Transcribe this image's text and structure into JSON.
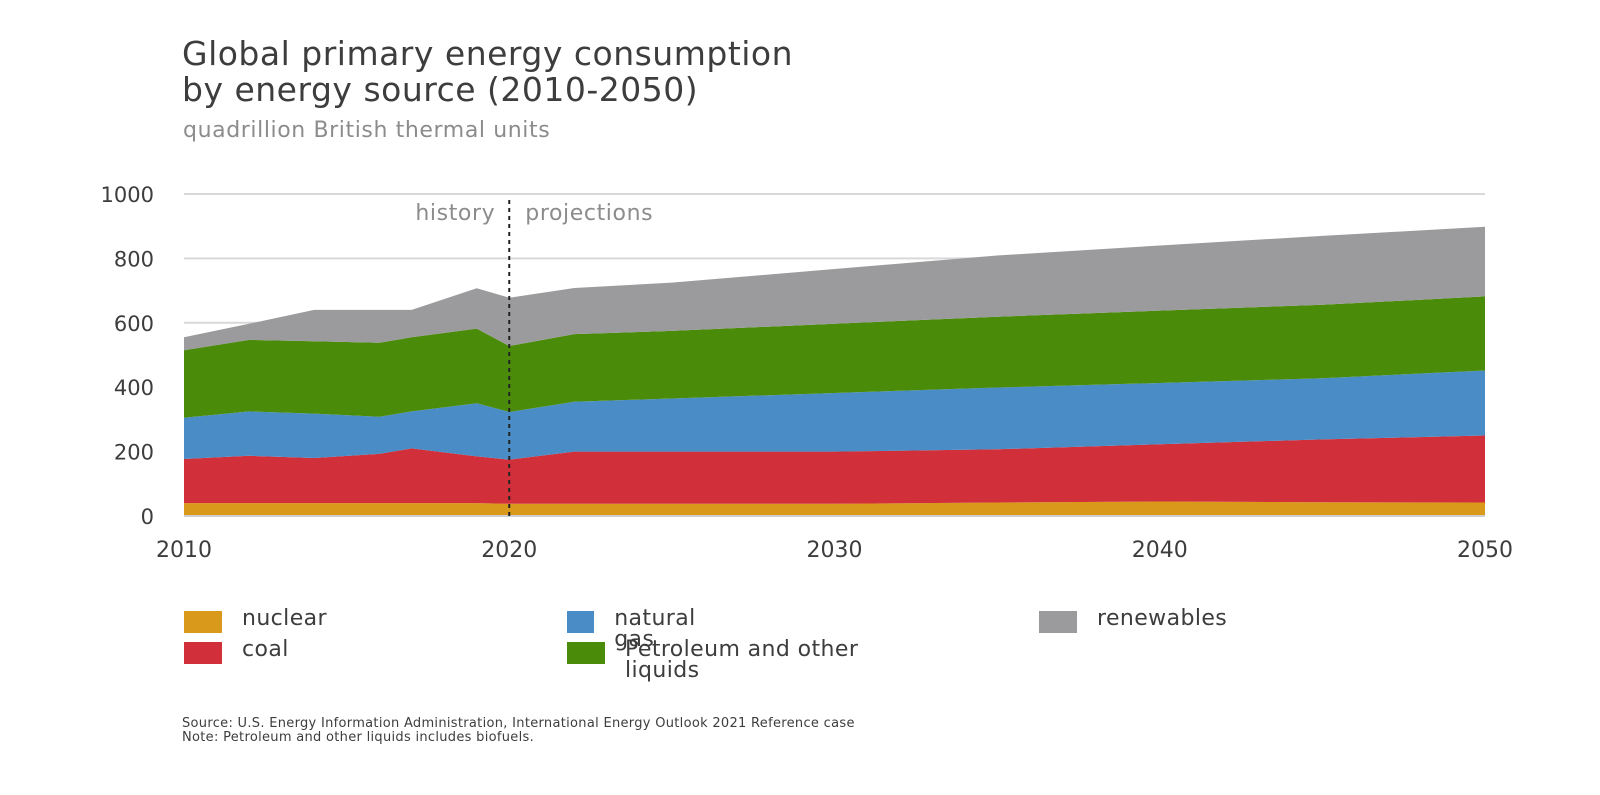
{
  "title_lines": [
    "Global primary energy consumption",
    "by energy source (2010-2050)"
  ],
  "subtitle": "quadrillion British thermal units",
  "source_note": "Source: U.S. Energy Information Administration, International Energy Outlook 2021 Reference case",
  "footnote": "Note: Petroleum and other liquids includes biofuels.",
  "chart_data": {
    "type": "area",
    "stacked": true,
    "x": [
      2010,
      2012,
      2014,
      2016,
      2017,
      2019,
      2020,
      2022,
      2025,
      2030,
      2035,
      2040,
      2045,
      2050
    ],
    "series": [
      {
        "name": "nuclear",
        "color": "#d99a1c",
        "values": [
          40,
          40,
          40,
          40,
          40,
          40,
          38,
          38,
          38,
          38,
          42,
          45,
          43,
          42
        ]
      },
      {
        "name": "coal",
        "color": "#d1303a",
        "values": [
          137,
          147,
          140,
          153,
          170,
          145,
          137,
          162,
          162,
          162,
          165,
          178,
          195,
          208
        ]
      },
      {
        "name": "natural gas",
        "color": "#4a8cc6",
        "values": [
          128,
          138,
          138,
          115,
          115,
          165,
          148,
          155,
          165,
          182,
          192,
          190,
          190,
          202
        ]
      },
      {
        "name": "Petroleum and other liquids",
        "color": "#4a8c0a",
        "values": [
          210,
          222,
          225,
          230,
          230,
          232,
          205,
          210,
          210,
          215,
          220,
          225,
          228,
          230
        ]
      },
      {
        "name": "renewables",
        "color": "#9b9a9d",
        "values": [
          40,
          50,
          97,
          102,
          85,
          125,
          150,
          143,
          150,
          170,
          190,
          202,
          214,
          216
        ]
      }
    ],
    "ylim": [
      0,
      1000
    ],
    "yticks": [
      0,
      200,
      400,
      600,
      800,
      1000
    ],
    "xlim": [
      2010,
      2050
    ],
    "xticks": [
      2010,
      2020,
      2030,
      2040,
      2050
    ],
    "divider_x": 2020,
    "phase_labels": {
      "left": "history",
      "right": "projections"
    },
    "grid": "horizontal",
    "legend": "bottom"
  }
}
